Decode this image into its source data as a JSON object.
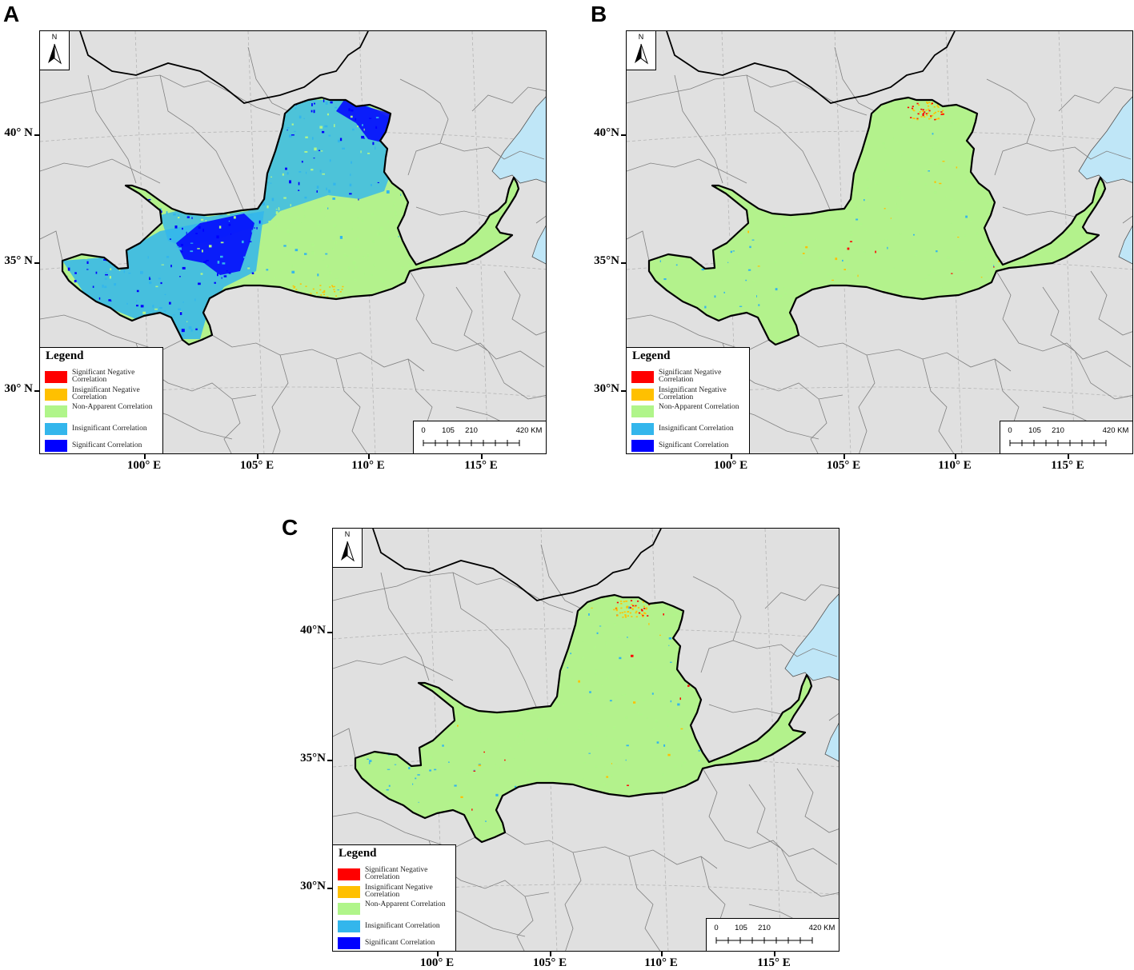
{
  "panels": [
    {
      "letter": "A",
      "variant": "mixed",
      "north": "N",
      "lat_labels": [
        "40° N",
        "35° N",
        "30° N"
      ],
      "lon_labels": [
        "100° E",
        "105° E",
        "110° E",
        "115° E"
      ]
    },
    {
      "letter": "B",
      "variant": "mostly-nonapparent",
      "north": "N",
      "lat_labels": [
        "40°N",
        "35°N",
        "30°N"
      ],
      "lon_labels": [
        "100° E",
        "105° E",
        "110° E",
        "115° E"
      ]
    },
    {
      "letter": "C",
      "variant": "mostly-nonapparent",
      "north": "N",
      "lat_labels": [
        "40°N",
        "35°N",
        "30°N"
      ],
      "lon_labels": [
        "100° E",
        "105° E",
        "110° E",
        "115° E"
      ]
    }
  ],
  "legend": {
    "title": "Legend",
    "items": [
      {
        "label": "Significant Negative Correlation",
        "color": "#ff0000"
      },
      {
        "label": "Insignificant Negative Correlation",
        "color": "#ffc000"
      },
      {
        "label": "Non-Apparent Correlation",
        "color": "#b0f58a"
      },
      {
        "label": "Insignificant Correlation",
        "color": "#33b6ec"
      },
      {
        "label": "Significant Correlation",
        "color": "#0000ff"
      }
    ]
  },
  "scale": {
    "ticks": [
      "0",
      "105",
      "210",
      "420 KM"
    ]
  },
  "colors": {
    "background_land": "#e0e0e0",
    "sea": "#bfe6f7",
    "basin_green": "#b3f28c",
    "boundary": "#000000",
    "province_lines": "#808080"
  }
}
